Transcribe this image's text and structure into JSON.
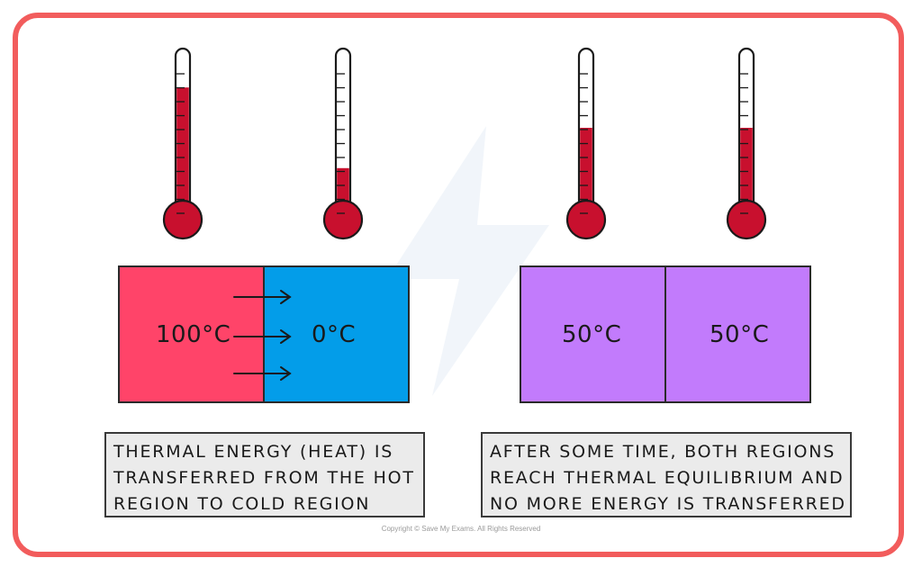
{
  "thermometers": [
    {
      "id": "hot",
      "fill_level": 0.78
    },
    {
      "id": "cold",
      "fill_level": 0.22
    },
    {
      "id": "eq-left",
      "fill_level": 0.5
    },
    {
      "id": "eq-right",
      "fill_level": 0.5
    }
  ],
  "left_panel": {
    "hot_region": {
      "label": "100°C",
      "color": "#ff4469"
    },
    "cold_region": {
      "label": "0°C",
      "color": "#039de9"
    },
    "arrow_count": 3
  },
  "right_panel": {
    "left_region": {
      "label": "50°C",
      "color": "#c27bfc"
    },
    "right_region": {
      "label": "50°C",
      "color": "#c27bfc"
    }
  },
  "captions": {
    "left": {
      "lines": [
        "THERMAL ENERGY (HEAT) IS",
        "TRANSFERRED FROM THE HOT",
        "REGION TO COLD REGION"
      ]
    },
    "right": {
      "lines": [
        "AFTER SOME TIME, BOTH REGIONS",
        "REACH THERMAL EQUILIBRIUM AND",
        "NO MORE ENERGY IS TRANSFERRED"
      ]
    }
  },
  "footer": {
    "copyright": "Copyright © Save My Exams. All Rights Reserved"
  },
  "colors": {
    "frame": "#f25c5c",
    "mercury": "#c8102e",
    "caption_bg": "#ebebeb"
  }
}
